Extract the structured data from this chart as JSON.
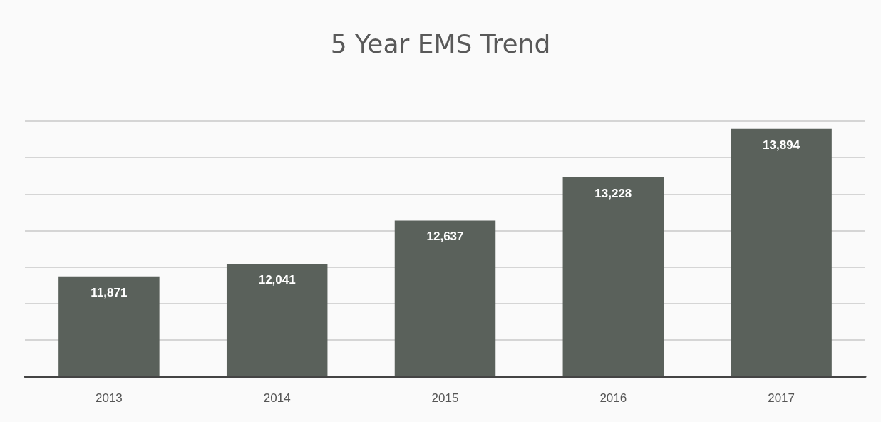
{
  "chart_data": {
    "type": "bar",
    "title": "5 Year EMS Trend",
    "categories": [
      "2013",
      "2014",
      "2015",
      "2016",
      "2017"
    ],
    "values": [
      11871,
      12041,
      12637,
      13228,
      13894
    ],
    "color": "#5a615b",
    "value_labels": [
      "11,871",
      "12,041",
      "12,637",
      "13,228",
      "13,894"
    ],
    "ylim": [
      10500,
      14000
    ],
    "yticks": [
      {
        "value": 10500,
        "label": null
      },
      {
        "value": 11000,
        "label": null
      },
      {
        "value": 11500,
        "label": null
      },
      {
        "value": 12000,
        "label": null
      },
      {
        "value": 12500,
        "label": null
      },
      {
        "value": 13000,
        "label": null
      },
      {
        "value": 13500,
        "label": null
      },
      {
        "value": 14000,
        "label": null
      }
    ],
    "tick_labels": "x",
    "grid": "y"
  }
}
